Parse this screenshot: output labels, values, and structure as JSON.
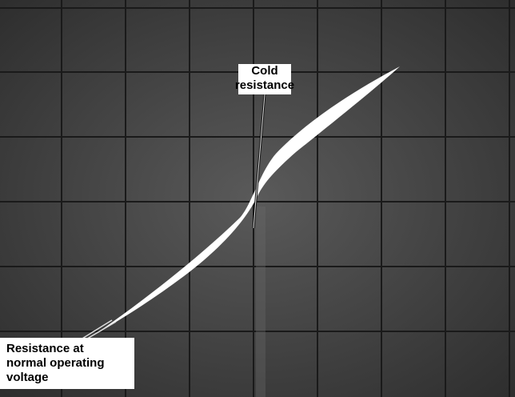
{
  "annotations": {
    "cold": {
      "lines": [
        "Cold",
        "resistance"
      ]
    },
    "normal": {
      "lines": [
        "Resistance at",
        "normal operating",
        "voltage"
      ]
    }
  }
}
